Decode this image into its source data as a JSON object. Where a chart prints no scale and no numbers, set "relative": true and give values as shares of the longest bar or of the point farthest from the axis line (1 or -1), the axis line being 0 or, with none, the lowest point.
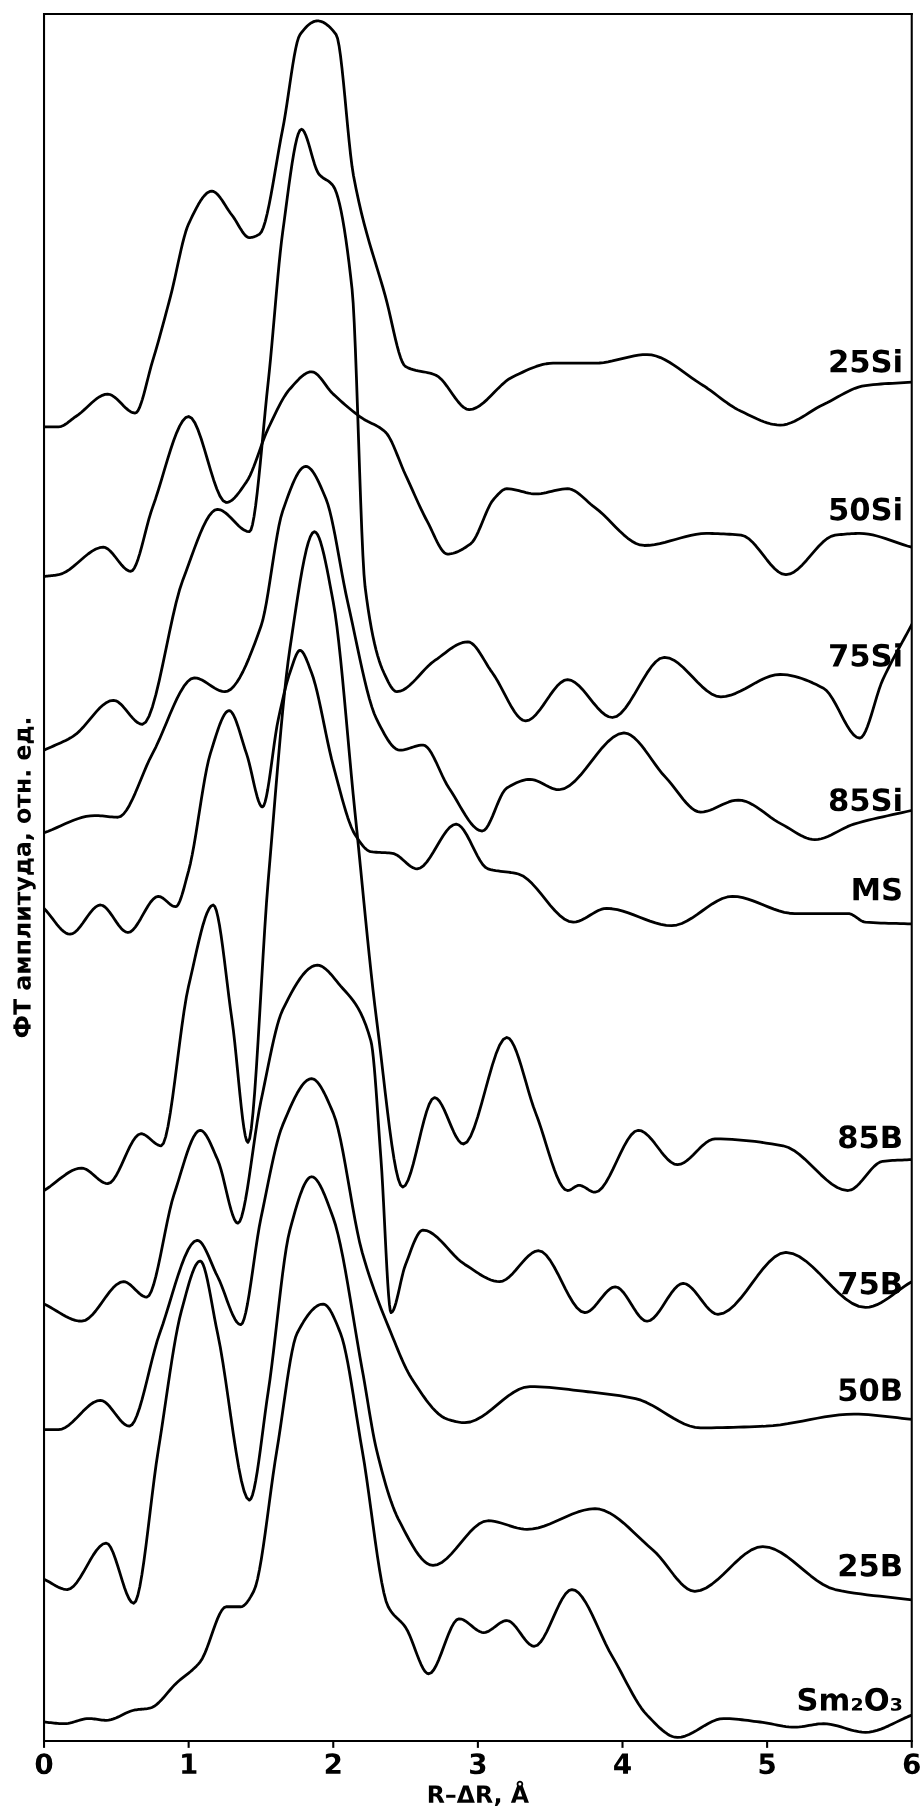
{
  "chart_data": {
    "type": "line",
    "relative": true,
    "xlabel": "R–ΔR, Å",
    "ylabel": "ФТ амплитуда, отн. ед.",
    "xlim": [
      0,
      6
    ],
    "xticks": [
      0,
      1,
      2,
      3,
      4,
      5,
      6
    ],
    "grid": false,
    "legend": false,
    "tick_labels": "x",
    "marker": "none",
    "line_style": "solid",
    "series": [
      {
        "name": "25Si",
        "color": "#000000",
        "x": [
          0,
          0.1,
          0.22,
          0.44,
          0.63,
          0.75,
          0.875,
          1.0,
          1.16,
          1.3,
          1.42,
          1.49,
          1.65,
          1.77,
          1.89,
          2.02,
          2.14,
          2.36,
          2.5,
          2.71,
          2.94,
          3.24,
          3.52,
          3.81,
          4.17,
          4.54,
          4.82,
          5.09,
          5.39,
          5.68,
          6.0
        ],
        "values": [
          0.764,
          0.764,
          0.77,
          0.783,
          0.772,
          0.802,
          0.84,
          0.882,
          0.901,
          0.887,
          0.874,
          0.876,
          0.937,
          0.992,
          1.0,
          0.992,
          0.91,
          0.84,
          0.799,
          0.794,
          0.774,
          0.793,
          0.801,
          0.801,
          0.806,
          0.789,
          0.773,
          0.765,
          0.777,
          0.788,
          0.79
        ]
      },
      {
        "name": "50Si",
        "color": "#000000",
        "x": [
          0,
          0.1,
          0.41,
          0.6,
          0.75,
          1.0,
          1.26,
          1.4,
          1.55,
          1.7,
          1.85,
          2.0,
          2.2,
          2.36,
          2.5,
          2.65,
          2.79,
          2.95,
          3.11,
          3.2,
          3.4,
          3.62,
          3.81,
          4.15,
          4.58,
          4.82,
          5.13,
          5.47,
          5.64,
          6.0
        ],
        "values": [
          0.677,
          0.678,
          0.694,
          0.68,
          0.717,
          0.77,
          0.72,
          0.732,
          0.763,
          0.786,
          0.796,
          0.783,
          0.769,
          0.761,
          0.736,
          0.709,
          0.69,
          0.696,
          0.722,
          0.728,
          0.725,
          0.728,
          0.717,
          0.695,
          0.702,
          0.701,
          0.678,
          0.701,
          0.702,
          0.694
        ]
      },
      {
        "name": "75Si",
        "color": "#000000",
        "x": [
          0,
          0.2,
          0.48,
          0.68,
          0.96,
          1.2,
          1.42,
          1.55,
          1.65,
          1.78,
          1.9,
          2.0,
          2.13,
          2.22,
          2.35,
          2.44,
          2.7,
          2.93,
          3.1,
          3.33,
          3.62,
          3.93,
          4.29,
          4.68,
          5.09,
          5.39,
          5.64,
          5.8,
          6.0
        ],
        "values": [
          0.576,
          0.584,
          0.605,
          0.591,
          0.675,
          0.716,
          0.703,
          0.79,
          0.877,
          0.937,
          0.911,
          0.904,
          0.844,
          0.671,
          0.621,
          0.61,
          0.628,
          0.639,
          0.621,
          0.593,
          0.617,
          0.595,
          0.63,
          0.607,
          0.62,
          0.612,
          0.583,
          0.617,
          0.649
        ]
      },
      {
        "name": "85Si",
        "color": "#000000",
        "x": [
          0,
          0.35,
          0.51,
          0.75,
          1.04,
          1.25,
          1.5,
          1.65,
          1.81,
          1.95,
          2.1,
          2.3,
          2.46,
          2.62,
          2.8,
          3.03,
          3.2,
          3.36,
          3.56,
          4.01,
          4.3,
          4.54,
          4.8,
          5.1,
          5.33,
          5.6,
          6.0
        ],
        "values": [
          0.528,
          0.538,
          0.537,
          0.574,
          0.618,
          0.61,
          0.648,
          0.715,
          0.741,
          0.722,
          0.662,
          0.594,
          0.576,
          0.579,
          0.554,
          0.529,
          0.554,
          0.559,
          0.553,
          0.586,
          0.56,
          0.54,
          0.547,
          0.533,
          0.524,
          0.533,
          0.541
        ]
      },
      {
        "name": "MS",
        "color": "#000000",
        "x": [
          0,
          0.18,
          0.39,
          0.58,
          0.79,
          0.91,
          1.0,
          1.15,
          1.28,
          1.4,
          1.51,
          1.62,
          1.7,
          1.77,
          1.85,
          2.0,
          2.15,
          2.26,
          2.41,
          2.58,
          2.85,
          3.07,
          3.28,
          3.66,
          3.89,
          4.34,
          4.76,
          5.19,
          5.56,
          5.68,
          6.0
        ],
        "values": [
          0.484,
          0.469,
          0.486,
          0.47,
          0.491,
          0.485,
          0.506,
          0.574,
          0.599,
          0.574,
          0.543,
          0.594,
          0.621,
          0.634,
          0.621,
          0.567,
          0.527,
          0.517,
          0.516,
          0.507,
          0.533,
          0.507,
          0.504,
          0.476,
          0.484,
          0.474,
          0.491,
          0.481,
          0.481,
          0.476,
          0.475
        ]
      },
      {
        "name": "85B",
        "color": "#000000",
        "x": [
          0,
          0.26,
          0.44,
          0.67,
          0.81,
          1.0,
          1.17,
          1.3,
          1.41,
          1.55,
          1.7,
          1.87,
          2.0,
          2.15,
          2.3,
          2.48,
          2.7,
          2.9,
          3.2,
          3.4,
          3.62,
          3.7,
          3.81,
          4.11,
          4.38,
          4.64,
          5.11,
          5.56,
          5.8,
          6.0
        ],
        "values": [
          0.32,
          0.333,
          0.324,
          0.353,
          0.346,
          0.439,
          0.486,
          0.419,
          0.348,
          0.5,
          0.635,
          0.703,
          0.662,
          0.54,
          0.419,
          0.322,
          0.374,
          0.347,
          0.409,
          0.365,
          0.32,
          0.323,
          0.319,
          0.355,
          0.335,
          0.35,
          0.346,
          0.32,
          0.337,
          0.338
        ]
      },
      {
        "name": "75B",
        "color": "#000000",
        "x": [
          0,
          0.26,
          0.55,
          0.71,
          0.9,
          1.08,
          1.2,
          1.34,
          1.5,
          1.65,
          1.89,
          2.05,
          2.26,
          2.33,
          2.4,
          2.5,
          2.62,
          2.91,
          3.15,
          3.42,
          3.74,
          3.95,
          4.17,
          4.42,
          4.66,
          5.13,
          5.68,
          6.0
        ],
        "values": [
          0.254,
          0.244,
          0.267,
          0.258,
          0.318,
          0.355,
          0.338,
          0.301,
          0.372,
          0.425,
          0.451,
          0.439,
          0.407,
          0.338,
          0.249,
          0.277,
          0.297,
          0.277,
          0.267,
          0.285,
          0.249,
          0.264,
          0.244,
          0.266,
          0.248,
          0.284,
          0.252,
          0.267
        ]
      },
      {
        "name": "50B",
        "color": "#000000",
        "x": [
          0,
          0.1,
          0.39,
          0.59,
          0.8,
          1.06,
          1.2,
          1.36,
          1.5,
          1.65,
          1.85,
          2.0,
          2.2,
          2.4,
          2.54,
          2.79,
          2.91,
          3.36,
          3.76,
          4.09,
          4.54,
          4.99,
          5.6,
          6.0
        ],
        "values": [
          0.181,
          0.181,
          0.198,
          0.183,
          0.237,
          0.291,
          0.27,
          0.242,
          0.304,
          0.358,
          0.385,
          0.365,
          0.284,
          0.237,
          0.211,
          0.187,
          0.185,
          0.206,
          0.203,
          0.199,
          0.182,
          0.183,
          0.19,
          0.187
        ]
      },
      {
        "name": "25B",
        "color": "#000000",
        "x": [
          0,
          0.16,
          0.43,
          0.62,
          0.79,
          0.95,
          1.08,
          1.2,
          1.42,
          1.55,
          1.7,
          1.85,
          2.0,
          2.2,
          2.3,
          2.45,
          2.69,
          3.07,
          3.34,
          3.81,
          4.21,
          4.5,
          4.97,
          5.47,
          6.0
        ],
        "values": [
          0.094,
          0.088,
          0.115,
          0.08,
          0.169,
          0.25,
          0.279,
          0.237,
          0.14,
          0.203,
          0.297,
          0.328,
          0.304,
          0.216,
          0.169,
          0.129,
          0.102,
          0.128,
          0.123,
          0.135,
          0.111,
          0.087,
          0.113,
          0.088,
          0.082
        ]
      },
      {
        "name": "Sm₂O₃",
        "color": "#000000",
        "x": [
          0,
          0.14,
          0.31,
          0.43,
          0.63,
          0.73,
          0.92,
          1.08,
          1.26,
          1.36,
          1.45,
          1.61,
          1.75,
          1.93,
          2.05,
          2.2,
          2.38,
          2.5,
          2.66,
          2.87,
          3.04,
          3.2,
          3.39,
          3.65,
          3.93,
          4.17,
          4.38,
          4.7,
          4.95,
          5.19,
          5.39,
          5.68,
          6.0
        ],
        "values": [
          0.011,
          0.01,
          0.013,
          0.012,
          0.018,
          0.019,
          0.034,
          0.046,
          0.078,
          0.078,
          0.087,
          0.169,
          0.237,
          0.254,
          0.237,
          0.169,
          0.078,
          0.066,
          0.039,
          0.071,
          0.063,
          0.07,
          0.055,
          0.088,
          0.049,
          0.015,
          0.002,
          0.013,
          0.011,
          0.008,
          0.01,
          0.005,
          0.015
        ]
      }
    ]
  }
}
